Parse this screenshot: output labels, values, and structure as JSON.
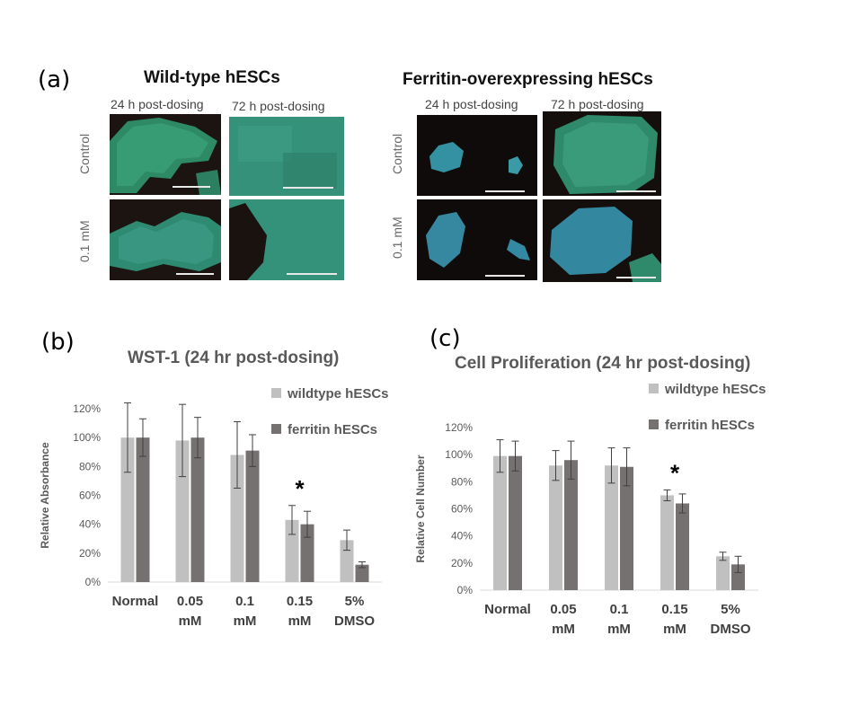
{
  "panel_a": {
    "label": "(a)",
    "groups": [
      {
        "title": "Wild-type hESCs",
        "columns": [
          "24 h post-dosing",
          "72 h post-dosing"
        ],
        "rows": [
          "Control",
          "0.1 mM"
        ]
      },
      {
        "title": "Ferritin-overexpressing hESCs",
        "columns": [
          "24 h post-dosing",
          "72 h post-dosing"
        ],
        "rows": [
          "Control",
          "0.1 mM"
        ]
      }
    ]
  },
  "panel_b": {
    "label": "(b)"
  },
  "panel_c": {
    "label": "(c)"
  },
  "colors": {
    "wildtype": "#c0c0c0",
    "ferritin": "#767171"
  },
  "chart_data": [
    {
      "type": "bar",
      "title": "WST-1 (24 hr post-dosing)",
      "xlabel": "",
      "ylabel": "Relative Absorbance",
      "categories": [
        [
          "Normal"
        ],
        [
          "0.05",
          "mM"
        ],
        [
          "0.1",
          "mM"
        ],
        [
          "0.15",
          "mM"
        ],
        [
          "5%",
          "DMSO"
        ]
      ],
      "ylim": [
        0,
        120
      ],
      "yticks": [
        "0%",
        "20%",
        "40%",
        "60%",
        "80%",
        "100%",
        "120%"
      ],
      "series": [
        {
          "name": "wildtype hESCs",
          "values": [
            100,
            98,
            88,
            43,
            29
          ],
          "errors": [
            24,
            25,
            23,
            10,
            7
          ]
        },
        {
          "name": "ferritin hESCs",
          "values": [
            100,
            100,
            91,
            40,
            12
          ],
          "errors": [
            13,
            14,
            11,
            9,
            2
          ]
        }
      ],
      "annotations": [
        {
          "text": "*",
          "category": 3
        }
      ],
      "legend": "top-right",
      "grid": false
    },
    {
      "type": "bar",
      "title": "Cell Proliferation (24 hr post-dosing)",
      "xlabel": "",
      "ylabel": "Relative Cell Number",
      "categories": [
        [
          "Normal"
        ],
        [
          "0.05",
          "mM"
        ],
        [
          "0.1",
          "mM"
        ],
        [
          "0.15",
          "mM"
        ],
        [
          "5%",
          "DMSO"
        ]
      ],
      "ylim": [
        0,
        120
      ],
      "yticks": [
        "0%",
        "20%",
        "40%",
        "60%",
        "80%",
        "100%",
        "120%"
      ],
      "series": [
        {
          "name": "wildtype hESCs",
          "values": [
            99,
            92,
            92,
            70,
            25
          ],
          "errors": [
            12,
            11,
            13,
            4,
            3
          ]
        },
        {
          "name": "ferritin hESCs",
          "values": [
            99,
            96,
            91,
            64,
            19
          ],
          "errors": [
            11,
            14,
            14,
            7,
            6
          ]
        }
      ],
      "annotations": [
        {
          "text": "*",
          "category": 3
        }
      ],
      "legend": "top-right",
      "grid": false
    }
  ]
}
